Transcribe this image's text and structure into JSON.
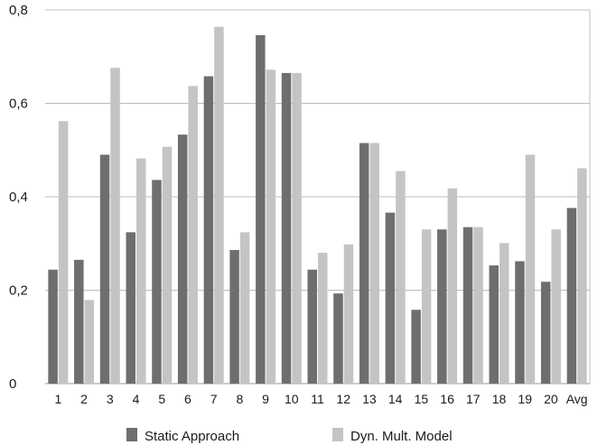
{
  "chart_data": {
    "type": "bar",
    "title": "",
    "xlabel": "",
    "ylabel": "",
    "ylim": [
      0,
      0.8
    ],
    "yticks": [
      "0",
      "0,2",
      "0,4",
      "0,6",
      "0,8"
    ],
    "ytick_values": [
      0,
      0.2,
      0.4,
      0.6,
      0.8
    ],
    "grid": "horizontal",
    "legend_position": "bottom",
    "categories": [
      "1",
      "2",
      "3",
      "4",
      "5",
      "6",
      "7",
      "8",
      "9",
      "10",
      "11",
      "12",
      "13",
      "14",
      "15",
      "16",
      "17",
      "18",
      "19",
      "20",
      "Avg"
    ],
    "series": [
      {
        "name": "Static Approach",
        "color": "#6e6e6e",
        "values": [
          0.244,
          0.265,
          0.49,
          0.324,
          0.436,
          0.533,
          0.658,
          0.286,
          0.746,
          0.665,
          0.244,
          0.193,
          0.515,
          0.366,
          0.158,
          0.33,
          0.335,
          0.253,
          0.262,
          0.218,
          0.376
        ]
      },
      {
        "name": "Dyn. Mult. Model",
        "color": "#c4c4c4",
        "values": [
          0.562,
          0.179,
          0.676,
          0.482,
          0.507,
          0.637,
          0.764,
          0.324,
          0.672,
          0.665,
          0.28,
          0.298,
          0.515,
          0.455,
          0.33,
          0.418,
          0.335,
          0.301,
          0.49,
          0.33,
          0.461
        ]
      }
    ]
  }
}
